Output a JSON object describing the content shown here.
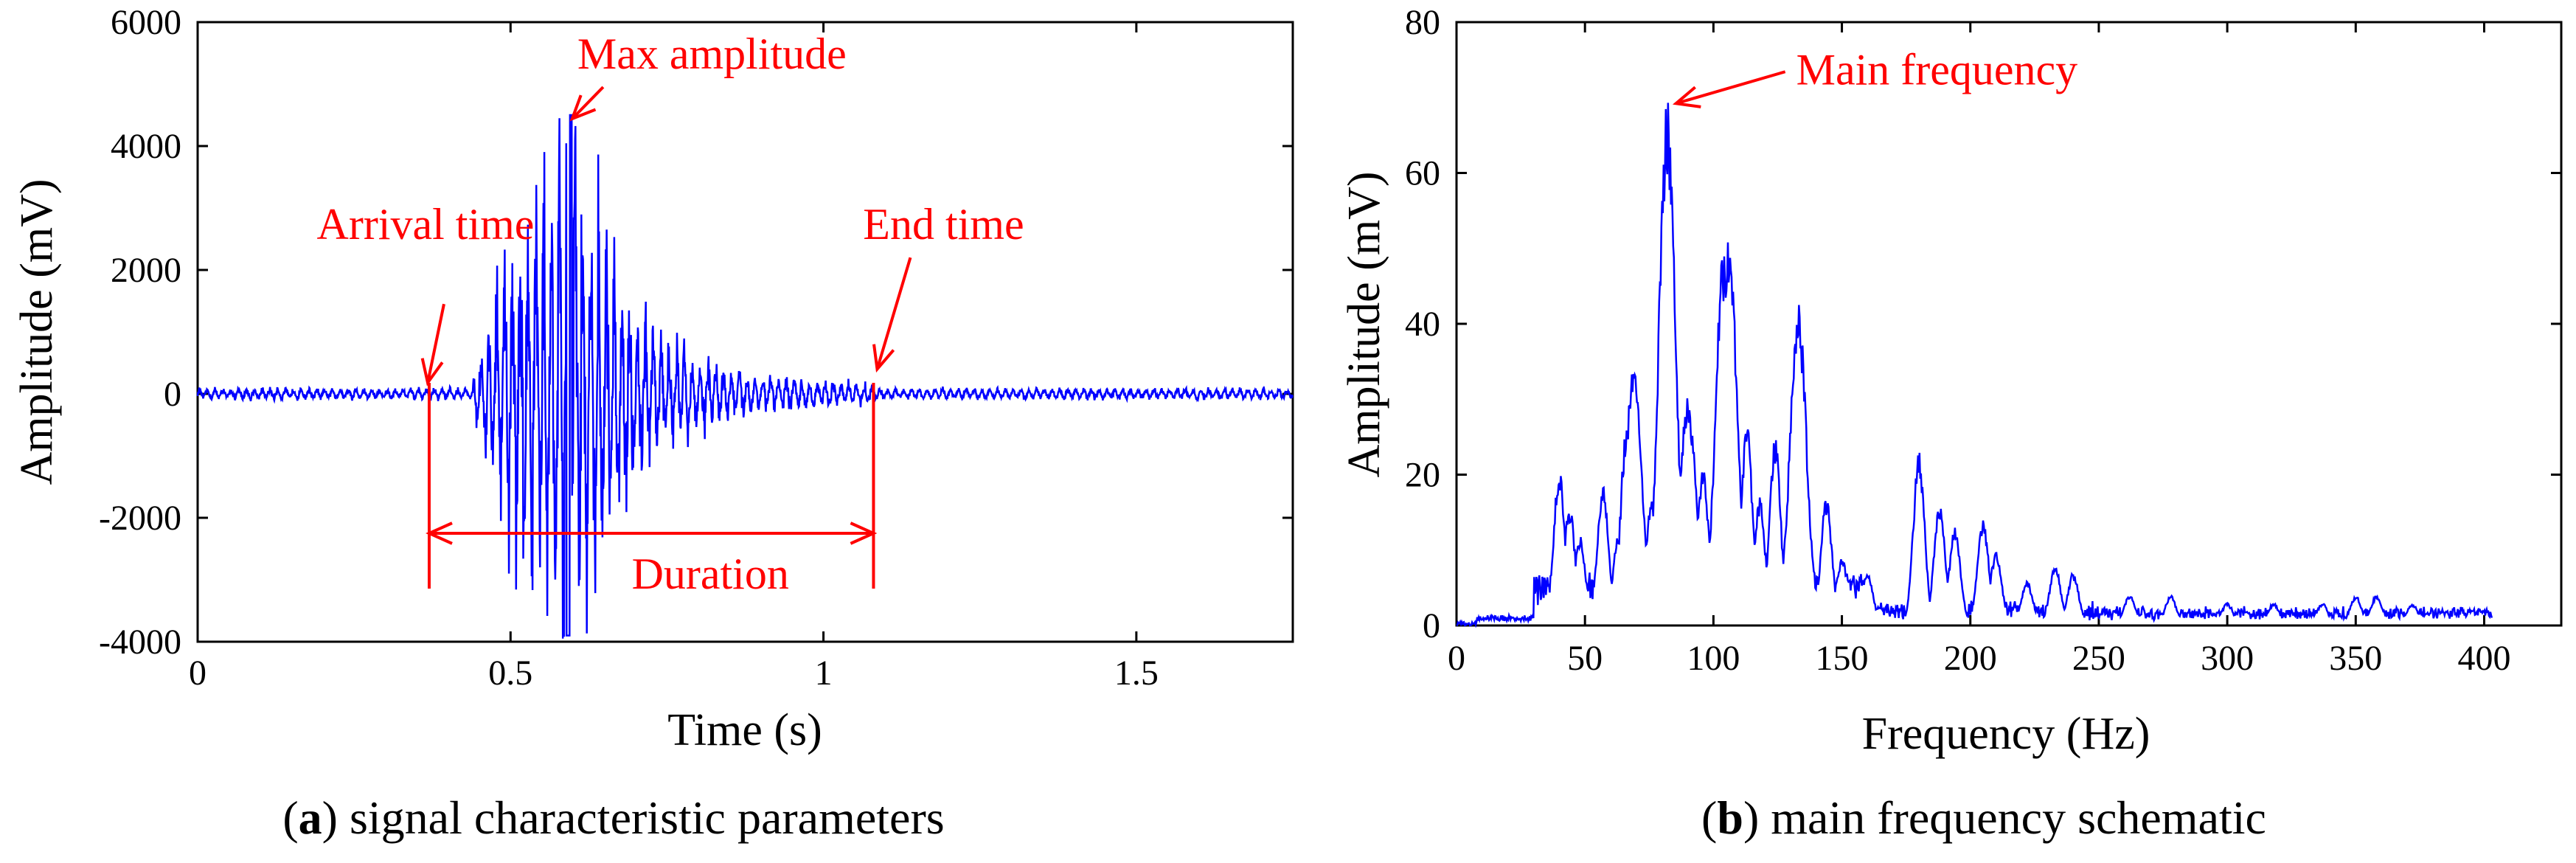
{
  "chart_data": [
    {
      "type": "line",
      "panel": "a",
      "caption_letter": "a",
      "caption_text": " signal characteristic parameters",
      "xlabel": "Time (s)",
      "ylabel": "Amplitude (mV)",
      "xlim": [
        0,
        1.75
      ],
      "ylim": [
        -4000,
        6000
      ],
      "x_ticks": [
        0,
        0.5,
        1,
        1.5
      ],
      "x_tick_labels": [
        "0",
        "0.5",
        "1",
        "1.5"
      ],
      "y_ticks": [
        -4000,
        -2000,
        0,
        2000,
        4000,
        6000
      ],
      "y_tick_labels": [
        "-4000",
        "-2000",
        "0",
        "2000",
        "4000",
        "6000"
      ],
      "color": "#0000ff",
      "annotation_color": "#ff0000",
      "signal": {
        "noise_amplitude": 90,
        "burst_start": 0.37,
        "burst_peak": 0.6,
        "burst_end": 1.08,
        "max_amplitude": 4500,
        "min_amplitude": -3900
      },
      "annotations": {
        "arrival_label": "Arrival time",
        "arrival_time": 0.37,
        "max_label": "Max amplitude",
        "max_time": 0.595,
        "max_value": 4500,
        "end_label": "End time",
        "end_time": 1.08,
        "duration_label": "Duration",
        "duration_level": -2250
      }
    },
    {
      "type": "line",
      "panel": "b",
      "caption_letter": "b",
      "caption_text": " main frequency schematic",
      "xlabel": "Frequency (Hz)",
      "ylabel": "Amplitude (mV)",
      "xlim": [
        0,
        430
      ],
      "ylim": [
        0,
        80
      ],
      "x_ticks": [
        0,
        50,
        100,
        150,
        200,
        250,
        300,
        350,
        400
      ],
      "x_tick_labels": [
        "0",
        "50",
        "100",
        "150",
        "200",
        "250",
        "300",
        "350",
        "400"
      ],
      "y_ticks": [
        0,
        20,
        40,
        60,
        80
      ],
      "y_tick_labels": [
        "0",
        "20",
        "40",
        "60",
        "80"
      ],
      "color": "#0000ff",
      "annotation_color": "#ff0000",
      "spectrum_peaks": [
        {
          "f": 40,
          "a": 21
        },
        {
          "f": 44,
          "a": 16
        },
        {
          "f": 48,
          "a": 12
        },
        {
          "f": 57,
          "a": 19
        },
        {
          "f": 63,
          "a": 12
        },
        {
          "f": 66,
          "a": 26
        },
        {
          "f": 69,
          "a": 35
        },
        {
          "f": 76,
          "a": 17
        },
        {
          "f": 82,
          "a": 70
        },
        {
          "f": 90,
          "a": 31
        },
        {
          "f": 96,
          "a": 21
        },
        {
          "f": 104,
          "a": 50
        },
        {
          "f": 106,
          "a": 52
        },
        {
          "f": 113,
          "a": 27
        },
        {
          "f": 118,
          "a": 17
        },
        {
          "f": 124,
          "a": 25
        },
        {
          "f": 133,
          "a": 43
        },
        {
          "f": 144,
          "a": 17
        },
        {
          "f": 150,
          "a": 9
        },
        {
          "f": 160,
          "a": 7
        },
        {
          "f": 180,
          "a": 23
        },
        {
          "f": 188,
          "a": 16
        },
        {
          "f": 194,
          "a": 13
        },
        {
          "f": 205,
          "a": 14
        },
        {
          "f": 210,
          "a": 10
        },
        {
          "f": 222,
          "a": 6
        },
        {
          "f": 233,
          "a": 8
        },
        {
          "f": 240,
          "a": 7
        },
        {
          "f": 262,
          "a": 4
        },
        {
          "f": 278,
          "a": 4
        },
        {
          "f": 300,
          "a": 3
        },
        {
          "f": 318,
          "a": 3
        },
        {
          "f": 337,
          "a": 3
        },
        {
          "f": 350,
          "a": 4
        },
        {
          "f": 358,
          "a": 4
        },
        {
          "f": 372,
          "a": 3
        },
        {
          "f": 395,
          "a": 2
        }
      ],
      "annotations": {
        "main_label": "Main frequency",
        "main_freq": 82,
        "main_amp": 70
      }
    }
  ]
}
